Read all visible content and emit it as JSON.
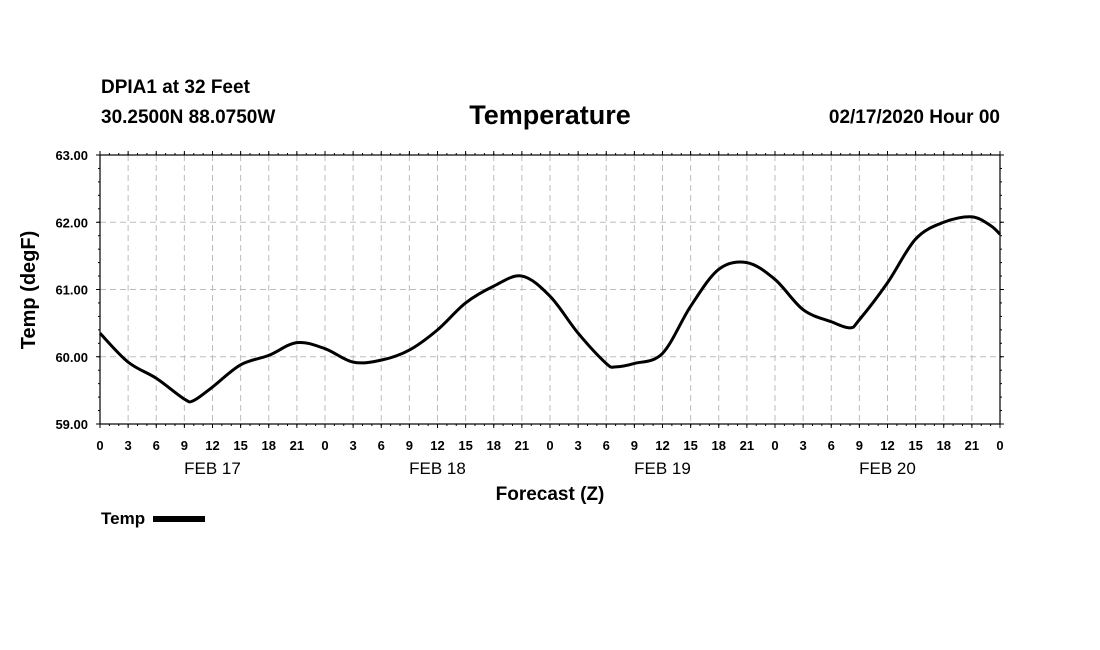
{
  "header": {
    "station": "DPIA1 at 32 Feet",
    "coords": "30.2500N 88.0750W",
    "datetime": "02/17/2020 Hour 00"
  },
  "legend": {
    "label": "Temp"
  },
  "chart_data": {
    "type": "line",
    "title": "Temperature",
    "xlabel": "Forecast (Z)",
    "ylabel": "Temp (degF)",
    "ylim": [
      59.0,
      63.0
    ],
    "xlim": [
      0,
      96
    ],
    "yticks": [
      "59.00",
      "60.00",
      "61.00",
      "62.00",
      "63.00"
    ],
    "yticks_values": [
      59.0,
      60.0,
      61.0,
      62.0,
      63.0
    ],
    "xtick_labels": [
      "0",
      "3",
      "6",
      "9",
      "12",
      "15",
      "18",
      "21",
      "0",
      "3",
      "6",
      "9",
      "12",
      "15",
      "18",
      "21",
      "0",
      "3",
      "6",
      "9",
      "12",
      "15",
      "18",
      "21",
      "0",
      "3",
      "6",
      "9",
      "12",
      "15",
      "18",
      "21",
      "0"
    ],
    "day_labels": [
      {
        "label": "FEB 17",
        "hour": 12
      },
      {
        "label": "FEB 18",
        "hour": 36
      },
      {
        "label": "FEB 19",
        "hour": 60
      },
      {
        "label": "FEB 20",
        "hour": 84
      }
    ],
    "grid": true,
    "series": [
      {
        "name": "Temp",
        "color": "#000000",
        "x": [
          0,
          3,
          6,
          9,
          10,
          12,
          15,
          18,
          21,
          24,
          27,
          30,
          33,
          36,
          39,
          42,
          45,
          48,
          51,
          54,
          55,
          57,
          60,
          63,
          66,
          69,
          72,
          75,
          78,
          80,
          81,
          84,
          87,
          90,
          93,
          95,
          96
        ],
        "values": [
          60.35,
          59.92,
          59.68,
          59.37,
          59.35,
          59.55,
          59.88,
          60.02,
          60.21,
          60.12,
          59.92,
          59.95,
          60.1,
          60.4,
          60.8,
          61.05,
          61.2,
          60.9,
          60.35,
          59.9,
          59.85,
          59.9,
          60.05,
          60.75,
          61.3,
          61.4,
          61.15,
          60.7,
          60.52,
          60.43,
          60.55,
          61.1,
          61.75,
          62.0,
          62.08,
          61.95,
          61.82
        ]
      }
    ]
  }
}
